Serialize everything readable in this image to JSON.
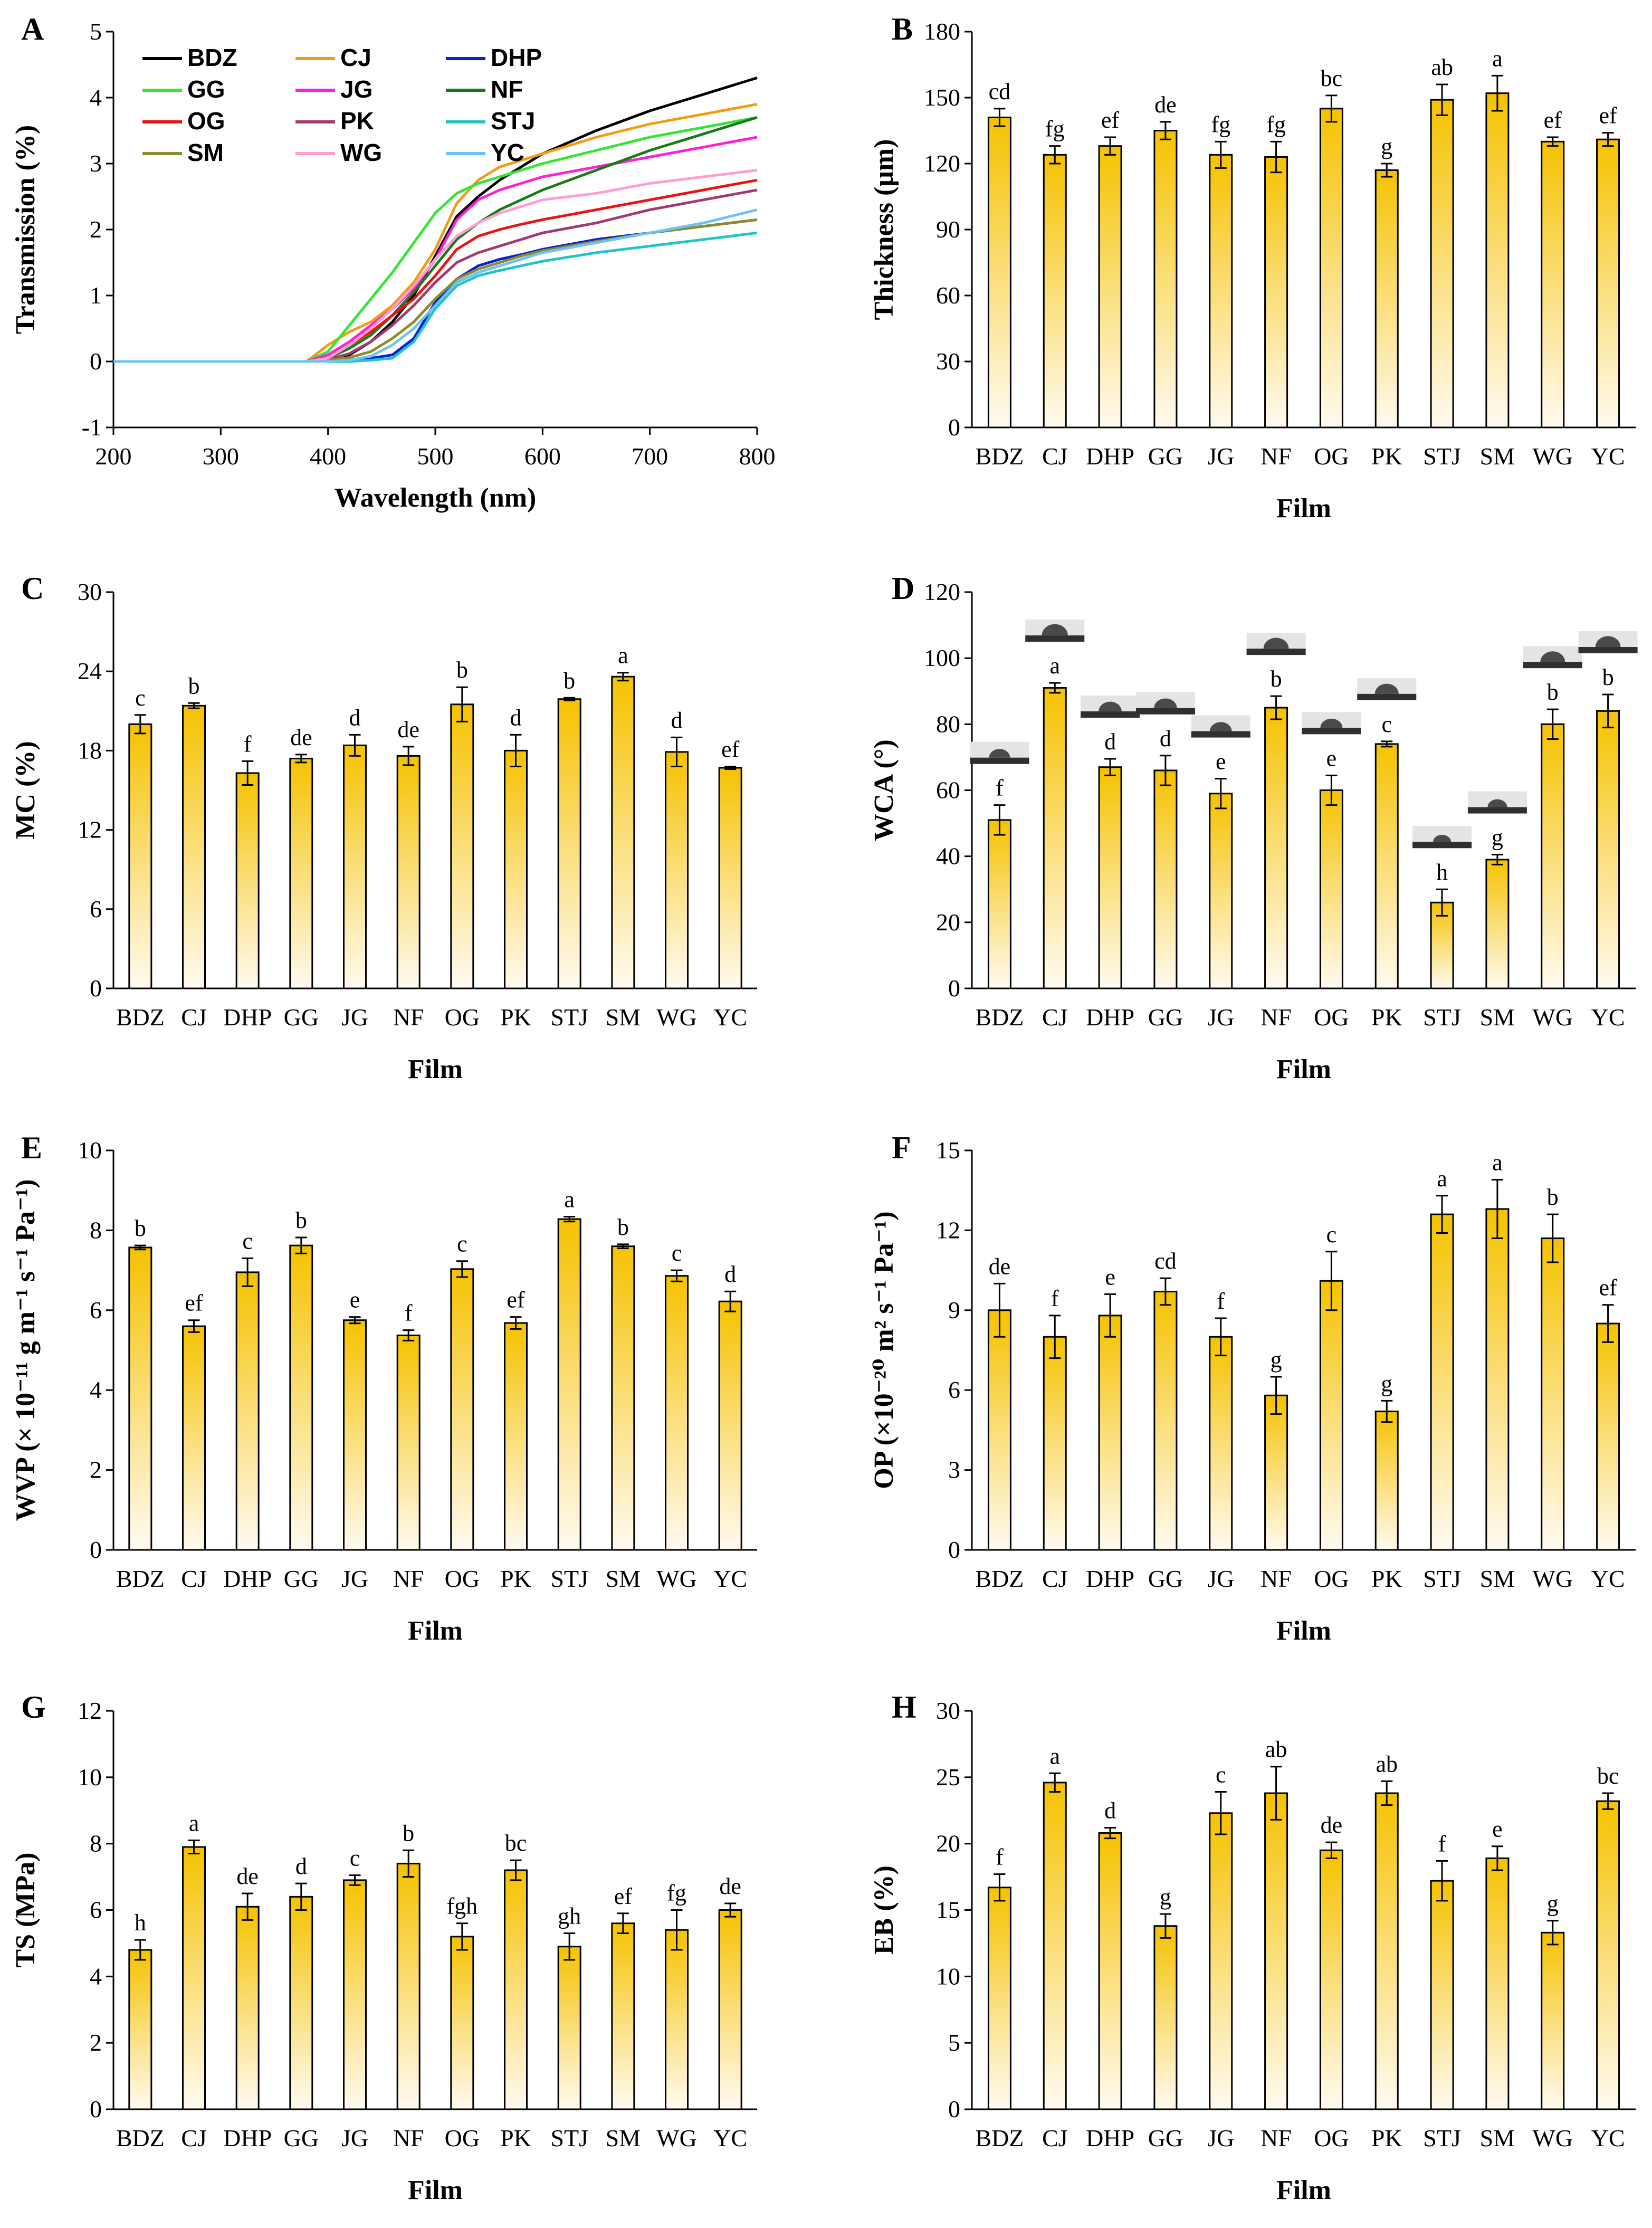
{
  "figure": {
    "films": [
      "BDZ",
      "CJ",
      "DHP",
      "GG",
      "JG",
      "NF",
      "OG",
      "PK",
      "STJ",
      "SM",
      "WG",
      "YC"
    ],
    "bar_colors": {
      "top": "#f5c200",
      "bottom": "#fffaf0",
      "edge": "#000000"
    },
    "chart_data": [
      {
        "panel": "A",
        "type": "line",
        "xlabel": "Wavelength (nm)",
        "ylabel": "Transmission (%)",
        "xlim": [
          200,
          800
        ],
        "ylim": [
          -1,
          5
        ],
        "xticks": [
          200,
          300,
          400,
          500,
          600,
          700,
          800
        ],
        "yticks": [
          -1,
          0,
          1,
          2,
          3,
          4,
          5
        ],
        "x": [
          200,
          380,
          400,
          420,
          440,
          460,
          480,
          500,
          520,
          540,
          560,
          580,
          600,
          650,
          700,
          750,
          800
        ],
        "legend": [
          "BDZ",
          "CJ",
          "DHP",
          "GG",
          "JG",
          "NF",
          "OG",
          "PK",
          "STJ",
          "SM",
          "WG",
          "YC"
        ],
        "series": [
          {
            "name": "BDZ",
            "color": "#000000",
            "values": [
              0,
              0,
              0.02,
              0.1,
              0.3,
              0.6,
              1.0,
              1.6,
              2.2,
              2.5,
              2.75,
              2.95,
              3.15,
              3.5,
              3.8,
              4.05,
              4.3
            ]
          },
          {
            "name": "CJ",
            "color": "#f39c12",
            "values": [
              0,
              0,
              0.25,
              0.45,
              0.6,
              0.85,
              1.2,
              1.7,
              2.4,
              2.75,
              2.95,
              3.05,
              3.15,
              3.4,
              3.6,
              3.75,
              3.9
            ]
          },
          {
            "name": "DHP",
            "color": "#0a1fd6",
            "values": [
              0,
              0,
              0,
              0.02,
              0.05,
              0.1,
              0.35,
              0.9,
              1.25,
              1.45,
              1.55,
              1.62,
              1.7,
              1.85,
              1.95,
              2.05,
              2.15
            ]
          },
          {
            "name": "GG",
            "color": "#33e633",
            "values": [
              0,
              0,
              0.15,
              0.55,
              0.95,
              1.35,
              1.8,
              2.25,
              2.55,
              2.7,
              2.8,
              2.9,
              3.0,
              3.2,
              3.4,
              3.55,
              3.7
            ]
          },
          {
            "name": "JG",
            "color": "#ff1fd6",
            "values": [
              0,
              0,
              0.1,
              0.3,
              0.55,
              0.8,
              1.1,
              1.55,
              2.15,
              2.45,
              2.6,
              2.7,
              2.8,
              2.95,
              3.1,
              3.25,
              3.4
            ]
          },
          {
            "name": "NF",
            "color": "#177a17",
            "values": [
              0,
              0,
              0.05,
              0.2,
              0.4,
              0.7,
              1.05,
              1.45,
              1.85,
              2.1,
              2.3,
              2.45,
              2.6,
              2.9,
              3.2,
              3.45,
              3.7
            ]
          },
          {
            "name": "OG",
            "color": "#ee1111",
            "values": [
              0,
              0,
              0.05,
              0.25,
              0.45,
              0.7,
              0.95,
              1.3,
              1.7,
              1.9,
              2.0,
              2.08,
              2.15,
              2.3,
              2.45,
              2.6,
              2.75
            ]
          },
          {
            "name": "PK",
            "color": "#a33a6e",
            "values": [
              0,
              0,
              0.03,
              0.12,
              0.3,
              0.55,
              0.85,
              1.2,
              1.5,
              1.65,
              1.75,
              1.85,
              1.95,
              2.1,
              2.3,
              2.45,
              2.6
            ]
          },
          {
            "name": "STJ",
            "color": "#1fc4c4",
            "values": [
              0,
              0,
              0,
              0,
              0.02,
              0.05,
              0.3,
              0.8,
              1.15,
              1.3,
              1.38,
              1.45,
              1.52,
              1.65,
              1.75,
              1.85,
              1.95
            ]
          },
          {
            "name": "SM",
            "color": "#8c8c2a",
            "values": [
              0,
              0,
              0.02,
              0.06,
              0.15,
              0.35,
              0.6,
              0.95,
              1.25,
              1.4,
              1.5,
              1.6,
              1.68,
              1.82,
              1.95,
              2.05,
              2.15
            ]
          },
          {
            "name": "WG",
            "color": "#ff9ed1",
            "values": [
              0,
              0,
              0.05,
              0.25,
              0.5,
              0.8,
              1.15,
              1.55,
              1.9,
              2.1,
              2.25,
              2.35,
              2.45,
              2.55,
              2.7,
              2.8,
              2.9
            ]
          },
          {
            "name": "YC",
            "color": "#6ec3f5",
            "values": [
              0,
              0,
              0,
              0.02,
              0.08,
              0.25,
              0.5,
              0.85,
              1.2,
              1.35,
              1.45,
              1.55,
              1.65,
              1.8,
              1.95,
              2.1,
              2.3
            ]
          }
        ]
      },
      {
        "panel": "B",
        "type": "bar",
        "xlabel": "Film",
        "ylabel": "Thickness (μm)",
        "ylim": [
          0,
          180
        ],
        "yticks": [
          0,
          30,
          60,
          90,
          120,
          150,
          180
        ],
        "values": [
          141,
          124,
          128,
          135,
          124,
          123,
          145,
          117,
          149,
          152,
          130,
          131
        ],
        "errors": [
          4,
          4,
          4,
          4,
          6,
          7,
          6,
          3,
          7,
          8,
          2,
          3
        ],
        "labels": [
          "cd",
          "fg",
          "ef",
          "de",
          "fg",
          "fg",
          "bc",
          "g",
          "ab",
          "a",
          "ef",
          "ef"
        ]
      },
      {
        "panel": "C",
        "type": "bar",
        "xlabel": "Film",
        "ylabel": "MC (%)",
        "ylim": [
          0,
          30
        ],
        "yticks": [
          0,
          6,
          12,
          18,
          24,
          30
        ],
        "values": [
          20.0,
          21.4,
          16.3,
          17.4,
          18.4,
          17.6,
          21.5,
          18.0,
          21.9,
          23.6,
          17.9,
          16.7
        ],
        "errors": [
          0.7,
          0.2,
          0.9,
          0.3,
          0.8,
          0.7,
          1.3,
          1.2,
          0.1,
          0.3,
          1.1,
          0.1
        ],
        "labels": [
          "c",
          "b",
          "f",
          "de",
          "d",
          "de",
          "b",
          "d",
          "b",
          "a",
          "d",
          "ef"
        ]
      },
      {
        "panel": "D",
        "type": "bar",
        "xlabel": "Film",
        "ylabel": "WCA (°)",
        "ylim": [
          0,
          120
        ],
        "yticks": [
          0,
          20,
          40,
          60,
          80,
          100,
          120
        ],
        "values": [
          51,
          91,
          67,
          66,
          59,
          85,
          60,
          74,
          26,
          39,
          80,
          84
        ],
        "errors": [
          4.5,
          1.5,
          2.5,
          4.5,
          4.5,
          3.5,
          4.5,
          0.8,
          4,
          1.5,
          4.5,
          5
        ],
        "labels": [
          "f",
          "a",
          "d",
          "d",
          "e",
          "b",
          "e",
          "c",
          "h",
          "g",
          "b",
          "b"
        ]
      },
      {
        "panel": "E",
        "type": "bar",
        "xlabel": "Film",
        "ylabel": "WVP (× 10⁻¹¹ g m⁻¹ s⁻¹ Pa⁻¹)",
        "ylim": [
          0,
          10
        ],
        "yticks": [
          0,
          2,
          4,
          6,
          8,
          10
        ],
        "values": [
          7.57,
          5.6,
          6.95,
          7.62,
          5.75,
          5.37,
          7.03,
          5.68,
          8.28,
          7.6,
          6.86,
          6.22
        ],
        "errors": [
          0.05,
          0.15,
          0.35,
          0.2,
          0.08,
          0.13,
          0.2,
          0.15,
          0.06,
          0.05,
          0.14,
          0.25
        ],
        "labels": [
          "b",
          "ef",
          "c",
          "b",
          "e",
          "f",
          "c",
          "ef",
          "a",
          "b",
          "c",
          "d"
        ]
      },
      {
        "panel": "F",
        "type": "bar",
        "xlabel": "Film",
        "ylabel": "OP (×10⁻²⁰ m² s⁻¹ Pa⁻¹)",
        "ylim": [
          0,
          15
        ],
        "yticks": [
          0,
          3,
          6,
          9,
          12,
          15
        ],
        "values": [
          9.0,
          8.0,
          8.8,
          9.7,
          8.0,
          5.8,
          10.1,
          5.2,
          12.6,
          12.8,
          11.7,
          8.5
        ],
        "errors": [
          1.0,
          0.8,
          0.8,
          0.5,
          0.7,
          0.7,
          1.1,
          0.4,
          0.7,
          1.1,
          0.9,
          0.7
        ],
        "labels": [
          "de",
          "f",
          "e",
          "cd",
          "f",
          "g",
          "c",
          "g",
          "a",
          "a",
          "b",
          "ef"
        ]
      },
      {
        "panel": "G",
        "type": "bar",
        "xlabel": "Film",
        "ylabel": "TS (MPa)",
        "ylim": [
          0,
          12
        ],
        "yticks": [
          0,
          2,
          4,
          6,
          8,
          10,
          12
        ],
        "values": [
          4.8,
          7.9,
          6.1,
          6.4,
          6.9,
          7.4,
          5.2,
          7.2,
          4.9,
          5.6,
          5.4,
          6.0
        ],
        "errors": [
          0.3,
          0.2,
          0.4,
          0.4,
          0.15,
          0.4,
          0.4,
          0.3,
          0.4,
          0.3,
          0.6,
          0.2
        ],
        "labels": [
          "h",
          "a",
          "de",
          "d",
          "c",
          "b",
          "fgh",
          "bc",
          "gh",
          "ef",
          "fg",
          "de"
        ]
      },
      {
        "panel": "H",
        "type": "bar",
        "xlabel": "Film",
        "ylabel": "EB (%)",
        "ylim": [
          0,
          30
        ],
        "yticks": [
          0,
          5,
          10,
          15,
          20,
          25,
          30
        ],
        "values": [
          16.7,
          24.6,
          20.8,
          13.8,
          22.3,
          23.8,
          19.5,
          23.8,
          17.2,
          18.9,
          13.3,
          23.2
        ],
        "errors": [
          1.0,
          0.7,
          0.4,
          0.9,
          1.6,
          2.0,
          0.6,
          0.9,
          1.5,
          0.9,
          0.9,
          0.6
        ],
        "labels": [
          "f",
          "a",
          "d",
          "g",
          "c",
          "ab",
          "de",
          "ab",
          "f",
          "e",
          "g",
          "bc"
        ]
      }
    ]
  }
}
